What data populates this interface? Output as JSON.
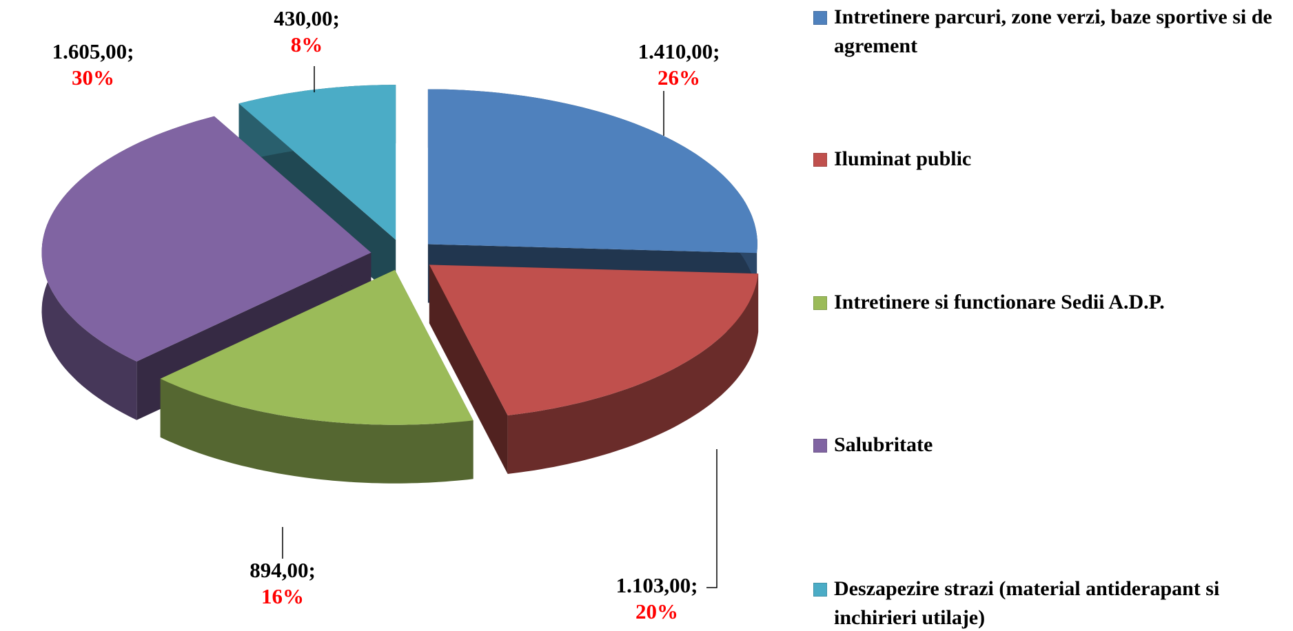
{
  "chart_data": {
    "type": "pie",
    "categories": [
      "Intretinere parcuri, zone verzi, baze sportive si de agrement",
      "Iluminat public",
      "Intretinere si functionare Sedii A.D.P.",
      "Salubritate",
      "Deszapezire strazi (material antiderapant si inchirieri utilaje)"
    ],
    "values": [
      1410,
      1103,
      894,
      1605,
      430
    ],
    "value_labels": [
      "1.410,00;",
      "1.103,00;",
      "894,00;",
      "1.605,00;",
      "430,00;"
    ],
    "percent_labels": [
      "26%",
      "20%",
      "16%",
      "30%",
      "8%"
    ],
    "colors": [
      "#4f81bd",
      "#c0504d",
      "#9bbb59",
      "#8064a2",
      "#4bacc6"
    ],
    "percent_color": "#ff0000",
    "three_d": true,
    "exploded": true,
    "legend": "right"
  }
}
